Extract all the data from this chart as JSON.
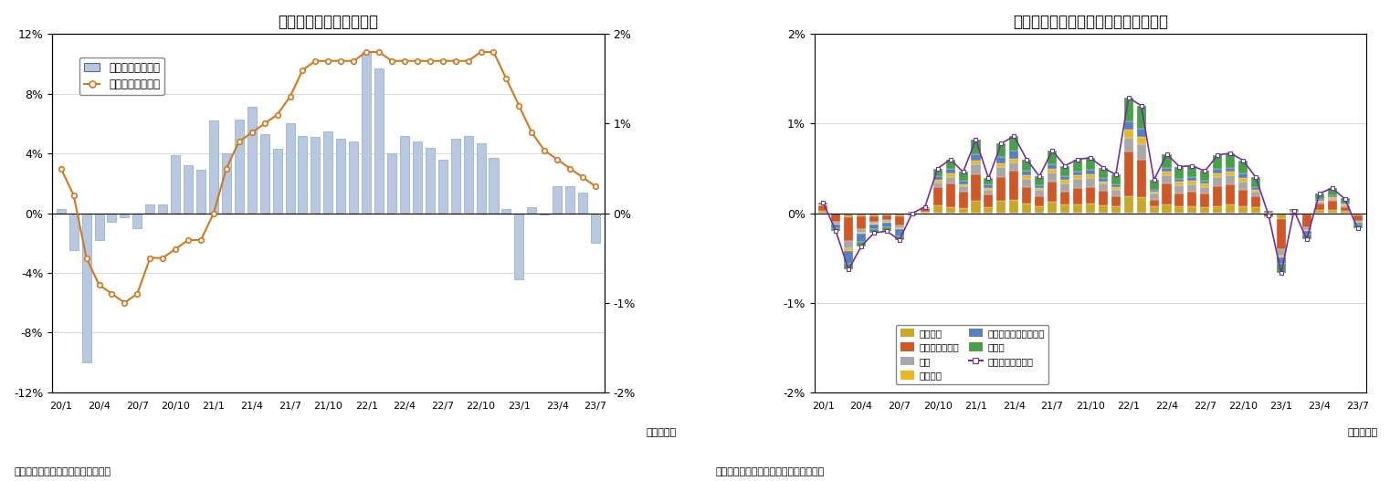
{
  "title1": "国内企業物価指数の推移",
  "title2": "国内企業物価指数の前月比寄与度分解",
  "source1": "（資料）日本銀行「企業物価指数」",
  "source2": "（資料）日本銀行「国内企業物価指数」",
  "year_month_label": "（年・月）",
  "xtick_labels": [
    "20/1",
    "20/4",
    "20/7",
    "20/10",
    "21/1",
    "21/4",
    "21/7",
    "21/10",
    "22/1",
    "22/4",
    "22/7",
    "22/10",
    "23/1",
    "23/4",
    "23/7"
  ],
  "n_bars": 43,
  "bar_color": "#b8c8e0",
  "bar_edge_color": "#8aaac8",
  "line_color": "#d4781e",
  "left_ylim": [
    -12,
    12
  ],
  "right_ylim": [
    -2,
    2
  ],
  "left_yticks": [
    -12,
    -8,
    -4,
    0,
    4,
    8,
    12
  ],
  "right_yticks": [
    -2,
    -1,
    0,
    1,
    2
  ],
  "left_yticklabels": [
    "-12%",
    "-8%",
    "-4%",
    "0%",
    "4%",
    "8%",
    "12%"
  ],
  "right_yticklabels": [
    "-2%",
    "-1%",
    "0%",
    "1%",
    "2%"
  ],
  "legend1_labels": [
    "前月比（右目盛）",
    "前年比（左目盛）"
  ],
  "bar_monthly": [
    0.3,
    -2.5,
    -10.0,
    -1.8,
    -0.6,
    -0.3,
    -1.0,
    0.6,
    0.6,
    3.9,
    3.2,
    2.9,
    6.2,
    4.0,
    6.3,
    7.1,
    5.3,
    4.3,
    6.0,
    5.2,
    5.1,
    5.5,
    5.0,
    4.8,
    10.8,
    9.7,
    4.0,
    5.2,
    4.8,
    4.4,
    3.6,
    5.0,
    5.2,
    4.7,
    3.7,
    0.3,
    -4.4,
    0.4,
    -0.1,
    1.8,
    1.8,
    1.4,
    -2.0
  ],
  "line_yoy": [
    0.5,
    0.2,
    -0.5,
    -0.8,
    -0.9,
    -1.0,
    -0.9,
    -0.5,
    -0.5,
    -0.4,
    -0.3,
    -0.3,
    0.0,
    0.5,
    0.8,
    0.9,
    1.0,
    1.1,
    1.3,
    1.6,
    1.7,
    1.7,
    1.7,
    1.7,
    1.8,
    1.8,
    1.7,
    1.7,
    1.7,
    1.7,
    1.7,
    1.7,
    1.7,
    1.8,
    1.8,
    1.5,
    1.2,
    0.9,
    0.7,
    0.6,
    0.5,
    0.4,
    0.3
  ],
  "stacked_data": {
    "化学製品": [
      0.03,
      0.0,
      -0.05,
      -0.04,
      -0.03,
      -0.02,
      -0.03,
      0.01,
      0.02,
      0.09,
      0.07,
      0.06,
      0.14,
      0.07,
      0.14,
      0.15,
      0.11,
      0.08,
      0.13,
      0.1,
      0.1,
      0.11,
      0.09,
      0.08,
      0.19,
      0.18,
      0.08,
      0.1,
      0.08,
      0.08,
      0.07,
      0.08,
      0.1,
      0.08,
      0.07,
      0.01,
      -0.07,
      0.01,
      -0.01,
      0.04,
      0.04,
      0.03,
      -0.02
    ],
    "石油・石炭製品": [
      0.06,
      -0.1,
      -0.26,
      -0.14,
      -0.07,
      -0.06,
      -0.11,
      -0.01,
      0.04,
      0.2,
      0.26,
      0.18,
      0.29,
      0.14,
      0.26,
      0.32,
      0.18,
      0.11,
      0.22,
      0.14,
      0.18,
      0.18,
      0.16,
      0.11,
      0.5,
      0.42,
      0.07,
      0.23,
      0.14,
      0.16,
      0.15,
      0.22,
      0.22,
      0.18,
      0.12,
      -0.05,
      -0.33,
      -0.02,
      -0.15,
      0.07,
      0.1,
      0.04,
      -0.07
    ],
    "鉄鋼": [
      0.0,
      -0.03,
      -0.08,
      -0.04,
      -0.02,
      -0.02,
      -0.03,
      0.0,
      0.0,
      0.05,
      0.07,
      0.06,
      0.12,
      0.05,
      0.12,
      0.1,
      0.09,
      0.07,
      0.1,
      0.09,
      0.1,
      0.1,
      0.08,
      0.07,
      0.15,
      0.17,
      0.07,
      0.09,
      0.09,
      0.08,
      0.07,
      0.1,
      0.1,
      0.09,
      0.05,
      0.0,
      -0.07,
      0.01,
      -0.03,
      0.02,
      0.02,
      0.02,
      -0.02
    ],
    "非鉄金属": [
      0.01,
      0.0,
      -0.03,
      -0.01,
      -0.01,
      -0.01,
      -0.01,
      0.0,
      0.0,
      0.03,
      0.04,
      0.02,
      0.04,
      0.02,
      0.04,
      0.04,
      0.04,
      0.02,
      0.04,
      0.04,
      0.04,
      0.04,
      0.02,
      0.03,
      0.09,
      0.08,
      0.02,
      0.04,
      0.04,
      0.04,
      0.04,
      0.04,
      0.04,
      0.04,
      0.02,
      0.0,
      -0.02,
      0.0,
      -0.01,
      0.01,
      0.02,
      0.01,
      0.0
    ],
    "電力・都市ガス・水道": [
      0.0,
      -0.04,
      -0.14,
      -0.09,
      -0.05,
      -0.05,
      -0.08,
      -0.01,
      0.0,
      0.04,
      0.05,
      0.04,
      0.07,
      0.04,
      0.07,
      0.09,
      0.05,
      0.03,
      0.06,
      0.04,
      0.04,
      0.05,
      0.04,
      0.03,
      0.1,
      0.09,
      0.02,
      0.05,
      0.03,
      0.04,
      0.03,
      0.05,
      0.05,
      0.05,
      0.03,
      0.0,
      -0.07,
      0.01,
      -0.04,
      0.02,
      0.02,
      0.01,
      -0.02
    ],
    "その他": [
      0.02,
      -0.03,
      -0.07,
      -0.05,
      -0.04,
      -0.04,
      -0.04,
      0.01,
      0.01,
      0.09,
      0.11,
      0.1,
      0.16,
      0.07,
      0.15,
      0.16,
      0.13,
      0.1,
      0.15,
      0.12,
      0.14,
      0.14,
      0.12,
      0.11,
      0.26,
      0.26,
      0.11,
      0.15,
      0.14,
      0.13,
      0.11,
      0.16,
      0.16,
      0.15,
      0.11,
      0.02,
      -0.11,
      0.02,
      -0.05,
      0.06,
      0.08,
      0.06,
      -0.04
    ]
  },
  "total_line": [
    0.12,
    -0.2,
    -0.63,
    -0.37,
    -0.22,
    -0.2,
    -0.3,
    -0.0,
    0.07,
    0.5,
    0.6,
    0.46,
    0.82,
    0.39,
    0.78,
    0.86,
    0.6,
    0.41,
    0.7,
    0.53,
    0.6,
    0.62,
    0.51,
    0.43,
    1.29,
    1.2,
    0.37,
    0.66,
    0.52,
    0.53,
    0.47,
    0.65,
    0.67,
    0.59,
    0.4,
    -0.02,
    -0.67,
    0.03,
    -0.29,
    0.22,
    0.28,
    0.16,
    -0.17
  ],
  "cat_colors": {
    "化学製品": "#c8a828",
    "石油・石炭製品": "#d05828",
    "鉄鋼": "#a8a8a8",
    "非鉄金属": "#e8b820",
    "電力・都市ガス・水道": "#5880c0",
    "その他": "#48a048"
  },
  "total_line_color": "#7030a0"
}
